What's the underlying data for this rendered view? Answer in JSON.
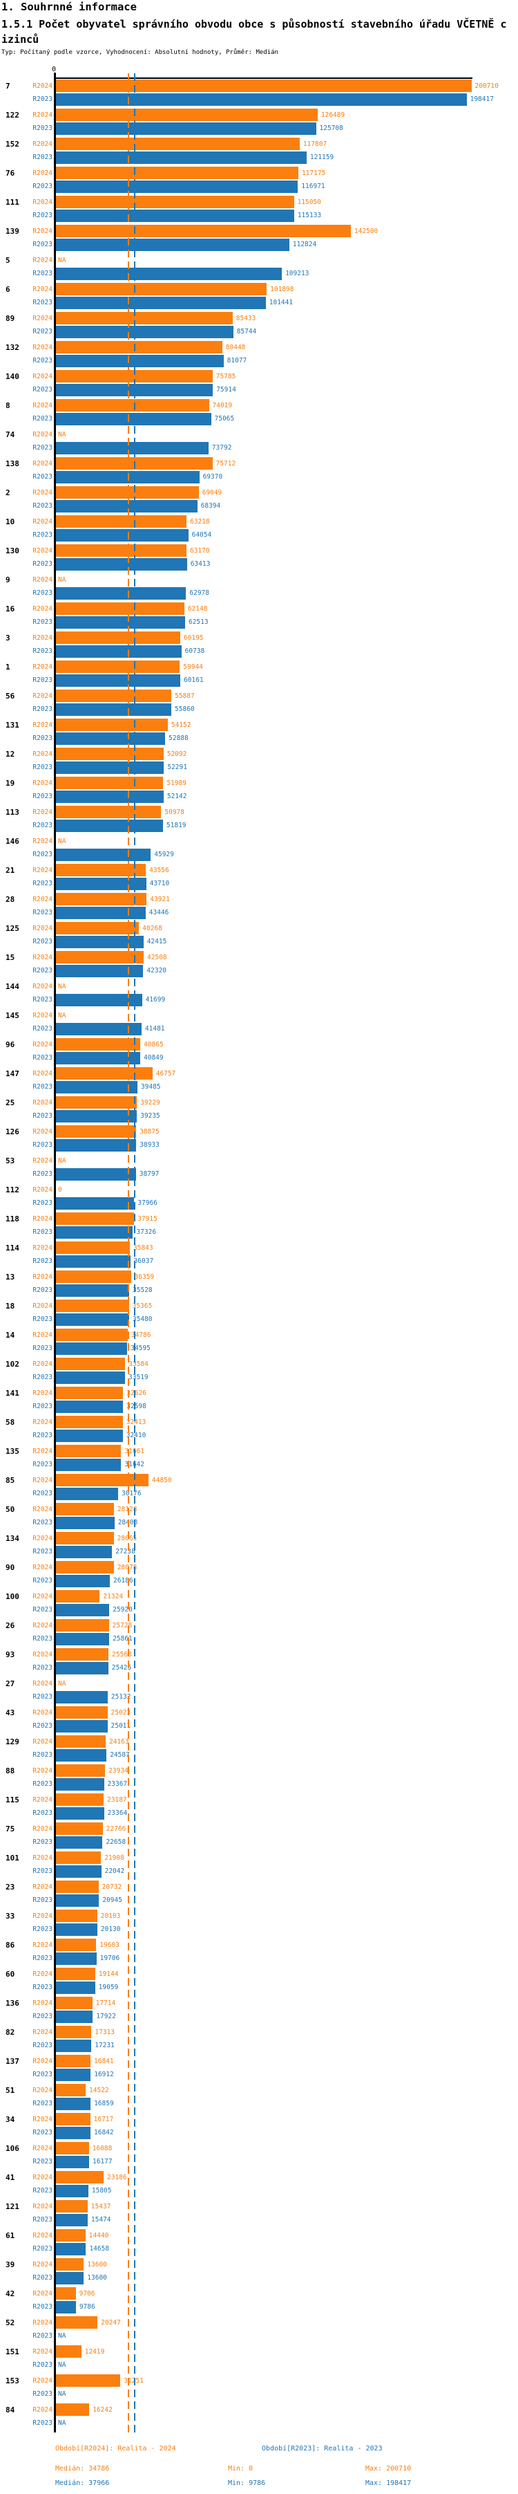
{
  "header": {
    "section_title": "1. Souhrnné informace",
    "metric_title": "1.5.1 Počet obyvatel správního obvodu obce s působností stavebního úřadu VČETNĚ cizinců",
    "type_line": "Typ: Počítaný podle vzorce, Vyhodnocení: Absolutní hodnoty, Průměr: Medián"
  },
  "chart_data": {
    "type": "bar",
    "orientation": "horizontal",
    "axis_origin_label": "0",
    "xlim": [
      0,
      200710
    ],
    "grid": false,
    "legend_position": "bottom",
    "series_names": [
      "R2024",
      "R2023"
    ],
    "colors": {
      "r2024": "#fb7f0e",
      "r2023": "#2176b5"
    },
    "na_label": "NA",
    "median_lines": {
      "r2024": 34786,
      "r2023": 37966
    },
    "stats": {
      "r2024": {
        "median": 34786,
        "min": 0,
        "max": 200710
      },
      "r2023": {
        "median": 37966,
        "min": 9786,
        "max": 198417
      }
    },
    "rows": [
      {
        "id": "7",
        "r2024": 200710,
        "r2023": 198417
      },
      {
        "id": "122",
        "r2024": 126489,
        "r2023": 125708
      },
      {
        "id": "152",
        "r2024": 117807,
        "r2023": 121159
      },
      {
        "id": "76",
        "r2024": 117175,
        "r2023": 116971
      },
      {
        "id": "111",
        "r2024": 115050,
        "r2023": 115133
      },
      {
        "id": "139",
        "r2024": 142500,
        "r2023": 112824
      },
      {
        "id": "5",
        "r2024": "NA",
        "r2023": 109213
      },
      {
        "id": "6",
        "r2024": 101898,
        "r2023": 101441
      },
      {
        "id": "89",
        "r2024": 85433,
        "r2023": 85744
      },
      {
        "id": "132",
        "r2024": 80448,
        "r2023": 81077
      },
      {
        "id": "140",
        "r2024": 75785,
        "r2023": 75914
      },
      {
        "id": "8",
        "r2024": 74019,
        "r2023": 75065
      },
      {
        "id": "74",
        "r2024": "NA",
        "r2023": 73792
      },
      {
        "id": "138",
        "r2024": 75712,
        "r2023": 69370
      },
      {
        "id": "2",
        "r2024": 69049,
        "r2023": 68394
      },
      {
        "id": "10",
        "r2024": 63218,
        "r2023": 64054
      },
      {
        "id": "130",
        "r2024": 63170,
        "r2023": 63413
      },
      {
        "id": "9",
        "r2024": "NA",
        "r2023": 62978
      },
      {
        "id": "16",
        "r2024": 62148,
        "r2023": 62513
      },
      {
        "id": "3",
        "r2024": 60195,
        "r2023": 60738
      },
      {
        "id": "1",
        "r2024": 59944,
        "r2023": 60161
      },
      {
        "id": "56",
        "r2024": 55887,
        "r2023": 55860
      },
      {
        "id": "131",
        "r2024": 54152,
        "r2023": 52888
      },
      {
        "id": "12",
        "r2024": 52092,
        "r2023": 52291
      },
      {
        "id": "19",
        "r2024": 51989,
        "r2023": 52142
      },
      {
        "id": "113",
        "r2024": 50978,
        "r2023": 51819
      },
      {
        "id": "146",
        "r2024": "NA",
        "r2023": 45929
      },
      {
        "id": "21",
        "r2024": 43556,
        "r2023": 43710
      },
      {
        "id": "28",
        "r2024": 43921,
        "r2023": 43446
      },
      {
        "id": "125",
        "r2024": 40268,
        "r2023": 42415
      },
      {
        "id": "15",
        "r2024": 42508,
        "r2023": 42320
      },
      {
        "id": "144",
        "r2024": "NA",
        "r2023": 41699
      },
      {
        "id": "145",
        "r2024": "NA",
        "r2023": 41481
      },
      {
        "id": "96",
        "r2024": 40865,
        "r2023": 40849
      },
      {
        "id": "147",
        "r2024": 46757,
        "r2023": 39485
      },
      {
        "id": "25",
        "r2024": 39229,
        "r2023": 39235
      },
      {
        "id": "126",
        "r2024": 38875,
        "r2023": 38933
      },
      {
        "id": "53",
        "r2024": "NA",
        "r2023": 38797
      },
      {
        "id": "112",
        "r2024": 0,
        "r2023": 37966
      },
      {
        "id": "118",
        "r2024": 37915,
        "r2023": 37326
      },
      {
        "id": "114",
        "r2024": 35843,
        "r2023": 36037
      },
      {
        "id": "13",
        "r2024": 36359,
        "r2023": 35528
      },
      {
        "id": "18",
        "r2024": 35365,
        "r2023": 35480
      },
      {
        "id": "14",
        "r2024": 34786,
        "r2023": 34595
      },
      {
        "id": "102",
        "r2024": 33584,
        "r2023": 33519
      },
      {
        "id": "141",
        "r2024": 32626,
        "r2023": 32598
      },
      {
        "id": "58",
        "r2024": 32413,
        "r2023": 32410
      },
      {
        "id": "135",
        "r2024": 31661,
        "r2023": 31642
      },
      {
        "id": "85",
        "r2024": 44850,
        "r2023": 30176
      },
      {
        "id": "50",
        "r2024": 28128,
        "r2023": 28408
      },
      {
        "id": "134",
        "r2024": 28065,
        "r2023": 27238
      },
      {
        "id": "90",
        "r2024": 28078,
        "r2023": 26186
      },
      {
        "id": "100",
        "r2024": 21324,
        "r2023": 25920
      },
      {
        "id": "26",
        "r2024": 25728,
        "r2023": 25861
      },
      {
        "id": "93",
        "r2024": 25568,
        "r2023": 25425
      },
      {
        "id": "27",
        "r2024": "NA",
        "r2023": 25132
      },
      {
        "id": "43",
        "r2024": 25023,
        "r2023": 25011
      },
      {
        "id": "129",
        "r2024": 24163,
        "r2023": 24587
      },
      {
        "id": "88",
        "r2024": 23934,
        "r2023": 23367
      },
      {
        "id": "115",
        "r2024": 23187,
        "r2023": 23364
      },
      {
        "id": "75",
        "r2024": 22766,
        "r2023": 22658
      },
      {
        "id": "101",
        "r2024": 21908,
        "r2023": 22042
      },
      {
        "id": "23",
        "r2024": 20732,
        "r2023": 20945
      },
      {
        "id": "33",
        "r2024": 20103,
        "r2023": 20130
      },
      {
        "id": "86",
        "r2024": 19603,
        "r2023": 19706
      },
      {
        "id": "60",
        "r2024": 19144,
        "r2023": 19059
      },
      {
        "id": "136",
        "r2024": 17714,
        "r2023": 17922
      },
      {
        "id": "82",
        "r2024": 17313,
        "r2023": 17231
      },
      {
        "id": "137",
        "r2024": 16841,
        "r2023": 16912
      },
      {
        "id": "51",
        "r2024": 14522,
        "r2023": 16859
      },
      {
        "id": "34",
        "r2024": 16717,
        "r2023": 16842
      },
      {
        "id": "106",
        "r2024": 16088,
        "r2023": 16177
      },
      {
        "id": "41",
        "r2024": 23186,
        "r2023": 15805
      },
      {
        "id": "121",
        "r2024": 15437,
        "r2023": 15474
      },
      {
        "id": "61",
        "r2024": 14440,
        "r2023": 14658
      },
      {
        "id": "39",
        "r2024": 13600,
        "r2023": 13600
      },
      {
        "id": "42",
        "r2024": 9706,
        "r2023": 9786
      },
      {
        "id": "52",
        "r2024": 20247,
        "r2023": "NA"
      },
      {
        "id": "151",
        "r2024": 12419,
        "r2023": "NA"
      },
      {
        "id": "153",
        "r2024": 31251,
        "r2023": "NA"
      },
      {
        "id": "84",
        "r2024": 16242,
        "r2023": "NA"
      }
    ]
  },
  "legend": {
    "r2024_period": "Období[R2024]: Realita - 2024",
    "r2023_period": "Období[R2023]: Realita - 2023",
    "r2024_median": "Medián: 34786",
    "r2024_min": "Min: 0",
    "r2024_max": "Max: 200710",
    "r2023_median": "Medián: 37966",
    "r2023_min": "Min: 9786",
    "r2023_max": "Max: 198417"
  }
}
